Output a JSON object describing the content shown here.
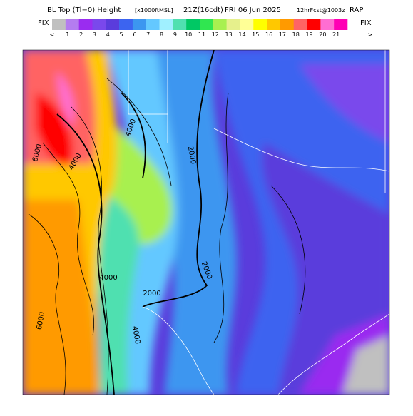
{
  "header": {
    "title": "BL Top (Tl=0) Height",
    "units": "[x1000ftMSL]",
    "valid_time": "21Z(16cdt)",
    "date": "FRI 06 Jun 2025",
    "forecast": "12hrFcst@1003z",
    "model": "RAP"
  },
  "colorbar": {
    "left_label": "FIX",
    "right_label": "FIX",
    "ticks": [
      "<",
      "1",
      "2",
      "3",
      "4",
      "5",
      "6",
      "7",
      "8",
      "9",
      "10",
      "11",
      "12",
      "13",
      "14",
      "15",
      "16",
      "17",
      "18",
      "19",
      "20",
      "21",
      ">"
    ],
    "colors": [
      "#c0c0c0",
      "#b47cf0",
      "#9a2cf0",
      "#7a48ec",
      "#5a3cdc",
      "#3c64f0",
      "#3c96f0",
      "#64c8ff",
      "#a0f0ff",
      "#50e0b0",
      "#00c864",
      "#30e650",
      "#a8f050",
      "#e6f08c",
      "#ffff96",
      "#ffff00",
      "#ffc800",
      "#ff9a00",
      "#ff6464",
      "#ff0000",
      "#ff6ed2",
      "#ff00b4"
    ]
  },
  "map": {
    "contour_labels": [
      "6000",
      "4000",
      "4000",
      "2000",
      "4000",
      "2000",
      "2000",
      "4000",
      "6000"
    ]
  }
}
